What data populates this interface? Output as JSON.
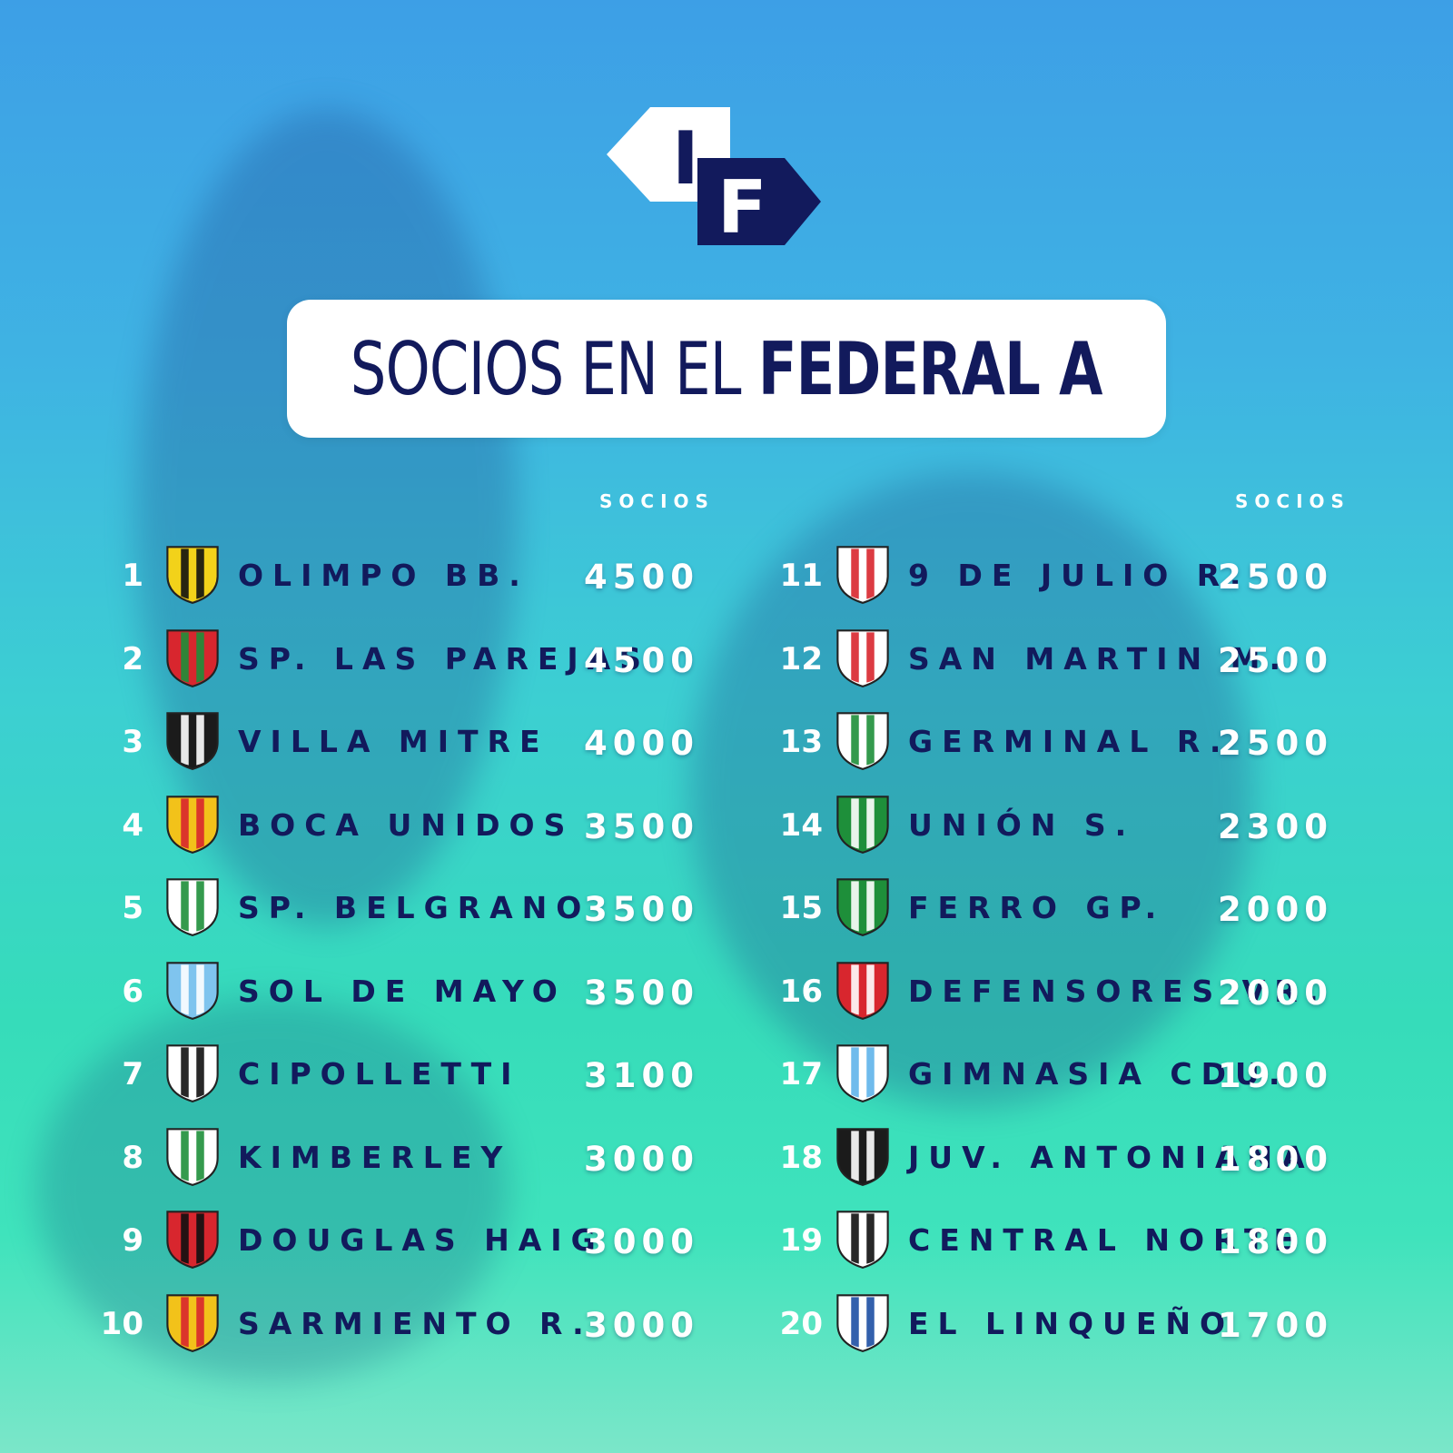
{
  "brand": {
    "logo_letters": [
      "I",
      "F"
    ],
    "navy": "#121a5c"
  },
  "title": {
    "light": "SOCIOS EN EL ",
    "bold": "FEDERAL A"
  },
  "column_header": "SOCIOS",
  "left": [
    {
      "rank": "1",
      "club": "OLIMPO BB.",
      "socios": "4500",
      "crest": "olimpo-crest-icon",
      "colors": [
        "#f2d21a",
        "#111111"
      ]
    },
    {
      "rank": "2",
      "club": "SP. LAS PAREJAS",
      "socios": "4500",
      "crest": "las-parejas-crest-icon",
      "colors": [
        "#d8262e",
        "#1e8f3a"
      ]
    },
    {
      "rank": "3",
      "club": "VILLA MITRE",
      "socios": "4000",
      "crest": "villa-mitre-crest-icon",
      "colors": [
        "#1b1b1b",
        "#ffffff"
      ]
    },
    {
      "rank": "4",
      "club": "BOCA UNIDOS",
      "socios": "3500",
      "crest": "boca-unidos-crest-icon",
      "colors": [
        "#f2c21a",
        "#d8262e"
      ]
    },
    {
      "rank": "5",
      "club": "SP. BELGRANO",
      "socios": "3500",
      "crest": "sp-belgrano-crest-icon",
      "colors": [
        "#ffffff",
        "#1e8f3a"
      ]
    },
    {
      "rank": "6",
      "club": "SOL DE MAYO",
      "socios": "3500",
      "crest": "sol-de-mayo-crest-icon",
      "colors": [
        "#7fc4ee",
        "#ffffff"
      ]
    },
    {
      "rank": "7",
      "club": "CIPOLLETTI",
      "socios": "3100",
      "crest": "cipolletti-crest-icon",
      "colors": [
        "#ffffff",
        "#111111"
      ]
    },
    {
      "rank": "8",
      "club": "KIMBERLEY",
      "socios": "3000",
      "crest": "kimberley-crest-icon",
      "colors": [
        "#ffffff",
        "#1e8f3a"
      ]
    },
    {
      "rank": "9",
      "club": "DOUGLAS HAIG",
      "socios": "3000",
      "crest": "douglas-haig-crest-icon",
      "colors": [
        "#d8262e",
        "#111111"
      ]
    },
    {
      "rank": "10",
      "club": "SARMIENTO R.",
      "socios": "3000",
      "crest": "sarmiento-crest-icon",
      "colors": [
        "#f2c21a",
        "#d8262e"
      ]
    }
  ],
  "right": [
    {
      "rank": "11",
      "club": "9 DE JULIO R.",
      "socios": "2500",
      "crest": "9-de-julio-crest-icon",
      "colors": [
        "#ffffff",
        "#d8262e"
      ]
    },
    {
      "rank": "12",
      "club": "SAN MARTIN M.",
      "socios": "2500",
      "crest": "san-martin-crest-icon",
      "colors": [
        "#ffffff",
        "#d8262e"
      ]
    },
    {
      "rank": "13",
      "club": "GERMINAL R.",
      "socios": "2500",
      "crest": "germinal-crest-icon",
      "colors": [
        "#ffffff",
        "#1e8f3a"
      ]
    },
    {
      "rank": "14",
      "club": "UNIÓN S.",
      "socios": "2300",
      "crest": "union-crest-icon",
      "colors": [
        "#1e8f3a",
        "#ffffff"
      ]
    },
    {
      "rank": "15",
      "club": "FERRO GP.",
      "socios": "2000",
      "crest": "ferro-crest-icon",
      "colors": [
        "#1e8f3a",
        "#ffffff"
      ]
    },
    {
      "rank": "16",
      "club": "DEFENSORES VR.",
      "socios": "2000",
      "crest": "defensores-crest-icon",
      "colors": [
        "#d8262e",
        "#ffffff"
      ]
    },
    {
      "rank": "17",
      "club": "GIMNASIA CDU.",
      "socios": "1900",
      "crest": "gimnasia-crest-icon",
      "colors": [
        "#ffffff",
        "#5fb4ea"
      ]
    },
    {
      "rank": "18",
      "club": "JUV. ANTONIANA",
      "socios": "1800",
      "crest": "juv-antoniana-crest-icon",
      "colors": [
        "#1b1b1b",
        "#ffffff"
      ]
    },
    {
      "rank": "19",
      "club": "CENTRAL NORTE",
      "socios": "1800",
      "crest": "central-norte-crest-icon",
      "colors": [
        "#ffffff",
        "#111111"
      ]
    },
    {
      "rank": "20",
      "club": "EL LINQUEÑO",
      "socios": "1700",
      "crest": "el-linqueno-crest-icon",
      "colors": [
        "#ffffff",
        "#1d4fa3"
      ]
    }
  ]
}
